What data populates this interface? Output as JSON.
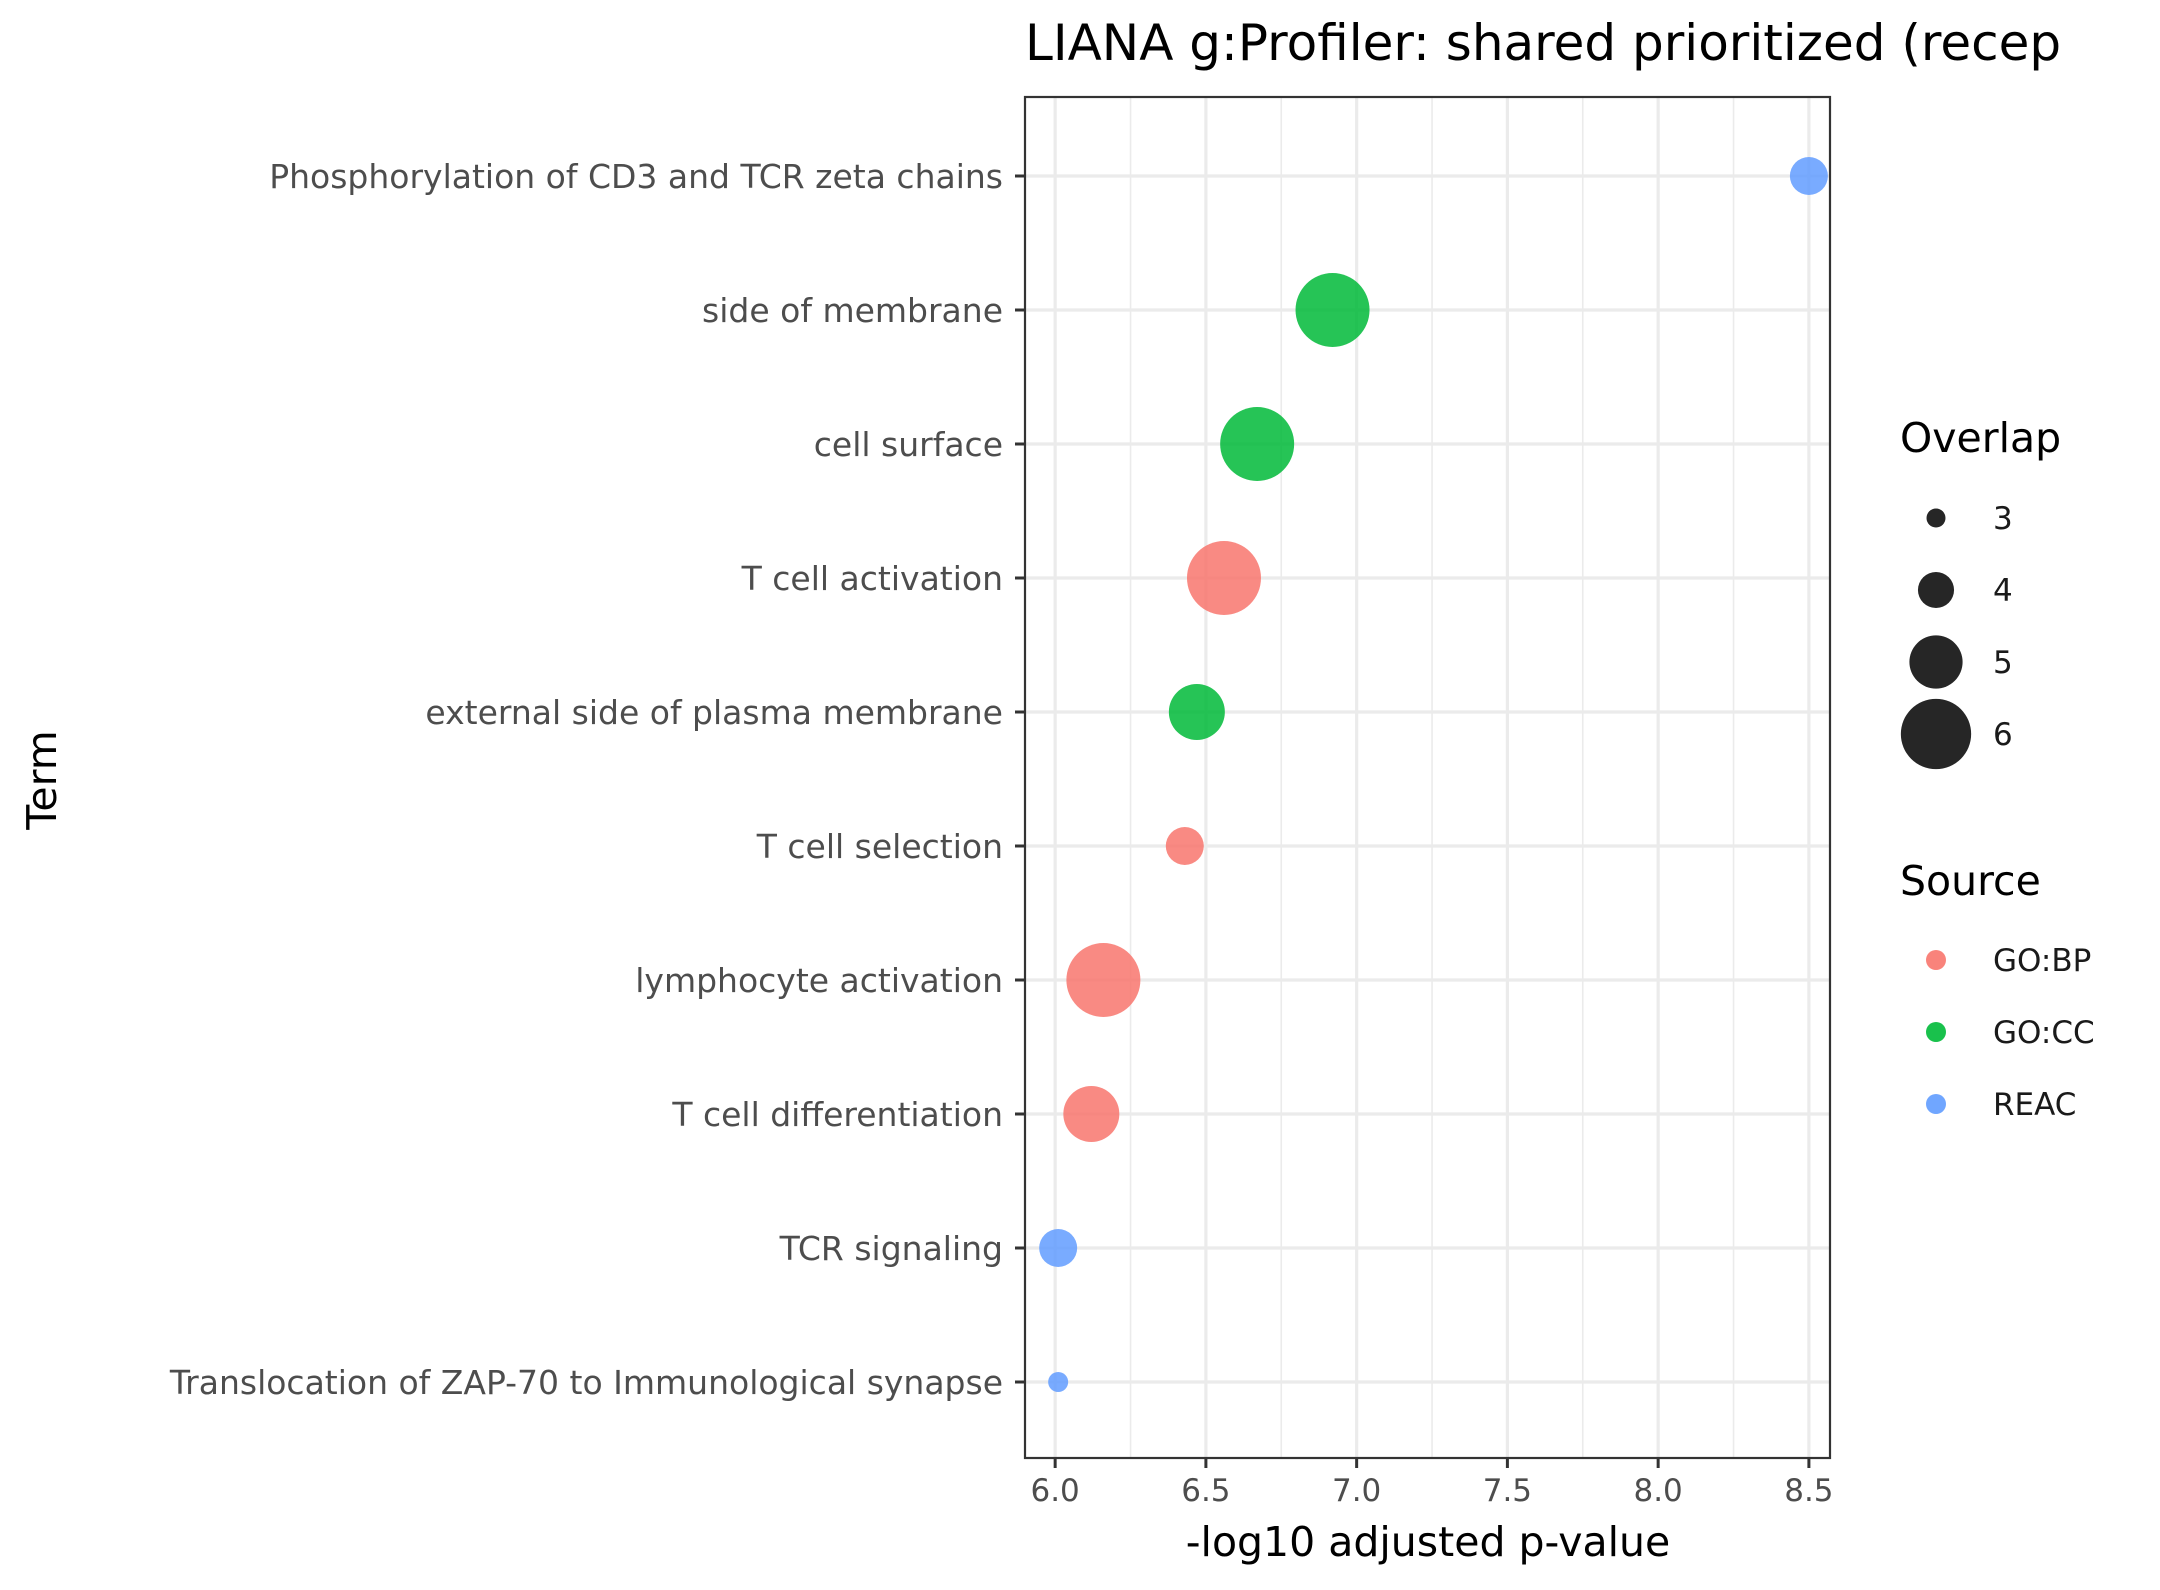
{
  "chart_data": {
    "type": "scatter",
    "title": "LIANA g:Profiler: shared prioritized (recep",
    "xlabel": "-log10 adjusted p-value",
    "ylabel": "Term",
    "xlim": [
      5.9,
      8.57
    ],
    "x_ticks": [
      "6.0",
      "6.5",
      "7.0",
      "7.5",
      "8.0",
      "8.5"
    ],
    "grid": true,
    "categories": [
      "Phosphorylation of CD3 and TCR zeta chains",
      "side of membrane",
      "cell surface",
      "T cell activation",
      "external side of plasma membrane",
      "T cell selection",
      "lymphocyte activation",
      "T cell differentiation",
      "TCR signaling",
      "Translocation of ZAP-70 to Immunological synapse"
    ],
    "points": [
      {
        "term": "Phosphorylation of CD3 and TCR zeta chains",
        "x": 8.5,
        "overlap": 4,
        "source": "REAC"
      },
      {
        "term": "side of membrane",
        "x": 6.92,
        "overlap": 6,
        "source": "GO:CC"
      },
      {
        "term": "cell surface",
        "x": 6.67,
        "overlap": 6,
        "source": "GO:CC"
      },
      {
        "term": "T cell activation",
        "x": 6.56,
        "overlap": 6,
        "source": "GO:BP"
      },
      {
        "term": "external side of plasma membrane",
        "x": 6.47,
        "overlap": 5,
        "source": "GO:CC"
      },
      {
        "term": "T cell selection",
        "x": 6.43,
        "overlap": 4,
        "source": "GO:BP"
      },
      {
        "term": "lymphocyte activation",
        "x": 6.16,
        "overlap": 6,
        "source": "GO:BP"
      },
      {
        "term": "T cell differentiation",
        "x": 6.12,
        "overlap": 5,
        "source": "GO:BP"
      },
      {
        "term": "TCR signaling",
        "x": 6.01,
        "overlap": 4,
        "source": "REAC"
      },
      {
        "term": "Translocation of ZAP-70 to Immunological synapse",
        "x": 6.01,
        "overlap": 3,
        "source": "REAC"
      }
    ],
    "legend_size": {
      "title": "Overlap",
      "items": [
        {
          "label": "3",
          "overlap": 3
        },
        {
          "label": "4",
          "overlap": 4
        },
        {
          "label": "5",
          "overlap": 5
        },
        {
          "label": "6",
          "overlap": 6
        }
      ]
    },
    "legend_color": {
      "title": "Source",
      "items": [
        {
          "label": "GO:BP",
          "color": "#f8766d"
        },
        {
          "label": "GO:CC",
          "color": "#00ba38"
        },
        {
          "label": "REAC",
          "color": "#619cff"
        }
      ]
    },
    "legend_placement": "right"
  }
}
